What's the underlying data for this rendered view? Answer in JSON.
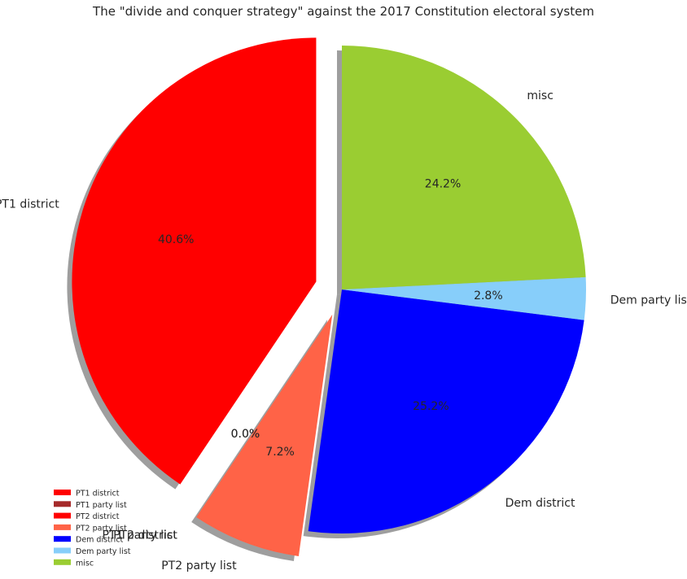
{
  "chart_data": {
    "type": "pie",
    "title": "The \"divide and conquer strategy\" against the 2017 Constitution electoral system",
    "slices": [
      {
        "label": "PT1 district",
        "value": 40.6,
        "pct_label": "40.6%",
        "color": "#ff0000",
        "explode": true
      },
      {
        "label": "PT1 party list",
        "value": 0.0,
        "pct_label": "0.0%",
        "color": "#a52a2a",
        "explode": true
      },
      {
        "label": "PT2 district",
        "value": 0.0,
        "pct_label": "0.0%",
        "color": "#ff0000",
        "explode": true
      },
      {
        "label": "PT2 party list",
        "value": 7.2,
        "pct_label": "7.2%",
        "color": "#ff6347",
        "explode": true
      },
      {
        "label": "Dem district",
        "value": 25.2,
        "pct_label": "25.2%",
        "color": "#0000ff",
        "explode": false
      },
      {
        "label": "Dem party list",
        "value": 2.8,
        "pct_label": "2.8%",
        "color": "#87cefa",
        "explode": false
      },
      {
        "label": "misc",
        "value": 24.2,
        "pct_label": "24.2%",
        "color": "#9acd32",
        "explode": false
      }
    ],
    "start_angle_deg": 90,
    "direction": "counterclockwise",
    "shadow": true,
    "legend_location": "lower-left",
    "legend": [
      "PT1 district",
      "PT1 party list",
      "PT2 district",
      "PT2 party list",
      "Dem district",
      "Dem party list",
      "misc"
    ]
  }
}
